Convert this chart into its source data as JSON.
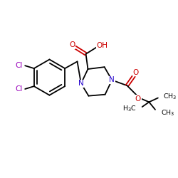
{
  "background_color": "#ffffff",
  "figsize": [
    2.5,
    2.5
  ],
  "dpi": 100,
  "colors": {
    "C": "#000000",
    "N": "#2200cc",
    "O": "#cc0000",
    "Cl": "#9900bb"
  },
  "fs": 7.5,
  "fs_s": 6.8,
  "lw": 1.3
}
